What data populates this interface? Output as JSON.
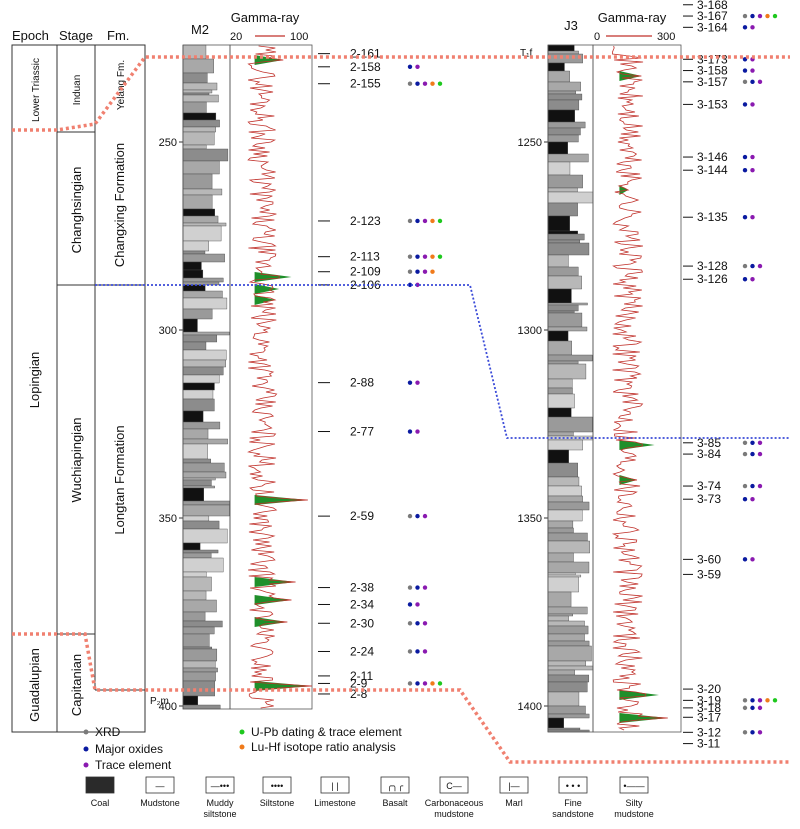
{
  "headers": {
    "epoch": "Epoch",
    "stage": "Stage",
    "formation": "Fm.",
    "well_a": "M2",
    "well_b": "J3",
    "gamma_a": "Gamma-ray",
    "gamma_b": "Gamma-ray",
    "gamma_a_min": "20",
    "gamma_a_max": "100",
    "gamma_b_min": "0",
    "gamma_b_max": "300"
  },
  "epochs": [
    {
      "label": "Lower Triassic"
    },
    {
      "label": "Lopingian"
    },
    {
      "label": "Guadalupian"
    }
  ],
  "stages": [
    {
      "label": "Induan"
    },
    {
      "label": "Changhsingian"
    },
    {
      "label": "Wuchiapingian"
    },
    {
      "label": "Capitanian"
    }
  ],
  "formations": [
    {
      "label": "Yelang Fm."
    },
    {
      "label": "Changxing Formation"
    },
    {
      "label": "Longtan Formation"
    }
  ],
  "depth_ticks_a": [
    "250",
    "300",
    "350",
    "400"
  ],
  "depth_ticks_b": [
    "1250",
    "1300",
    "1350",
    "1400"
  ],
  "bottom_label_a": "P₂m",
  "top_label_b": "T₁f",
  "samples_a": [
    {
      "label": "2-161",
      "depth": 226.5,
      "dots": []
    },
    {
      "label": "2-158",
      "depth": 230,
      "dots": [
        "major",
        "trace"
      ]
    },
    {
      "label": "2-155",
      "depth": 234.5,
      "dots": [
        "xrd",
        "major",
        "trace",
        "lu",
        "upb"
      ]
    },
    {
      "label": "2-123",
      "depth": 271,
      "dots": [
        "xrd",
        "major",
        "trace",
        "lu",
        "upb"
      ]
    },
    {
      "label": "2-113",
      "depth": 280.5,
      "dots": [
        "xrd",
        "major",
        "trace",
        "lu",
        "upb"
      ]
    },
    {
      "label": "2-109",
      "depth": 284.5,
      "dots": [
        "xrd",
        "major",
        "trace",
        "lu"
      ]
    },
    {
      "label": "2-106",
      "depth": 288,
      "dots": [
        "major",
        "trace"
      ]
    },
    {
      "label": "2-88",
      "depth": 314,
      "dots": [
        "major",
        "trace"
      ]
    },
    {
      "label": "2-77",
      "depth": 327,
      "dots": [
        "major",
        "trace"
      ]
    },
    {
      "label": "2-59",
      "depth": 349.5,
      "dots": [
        "xrd",
        "major",
        "trace"
      ]
    },
    {
      "label": "2-38",
      "depth": 368.5,
      "dots": [
        "xrd",
        "major",
        "trace"
      ]
    },
    {
      "label": "2-34",
      "depth": 373,
      "dots": [
        "major",
        "trace"
      ]
    },
    {
      "label": "2-30",
      "depth": 378,
      "dots": [
        "xrd",
        "major",
        "trace"
      ]
    },
    {
      "label": "2-24",
      "depth": 385.5,
      "dots": [
        "xrd",
        "major",
        "trace"
      ]
    },
    {
      "label": "2-11",
      "depth": 392,
      "dots": []
    },
    {
      "label": "2-9",
      "depth": 394,
      "dots": [
        "xrd",
        "major",
        "trace",
        "lu",
        "upb"
      ]
    },
    {
      "label": "2-8",
      "depth": 396.8,
      "dots": []
    }
  ],
  "samples_b": [
    {
      "label": "3-168",
      "depth": 1213.5,
      "dots": []
    },
    {
      "label": "3-167",
      "depth": 1216.5,
      "dots": [
        "xrd",
        "major",
        "trace",
        "lu",
        "upb"
      ]
    },
    {
      "label": "3-164",
      "depth": 1219.5,
      "dots": [
        "major",
        "trace"
      ]
    },
    {
      "label": "3-173",
      "depth": 1228,
      "dots": [
        "major",
        "trace"
      ]
    },
    {
      "label": "3-158",
      "depth": 1231,
      "dots": [
        "major",
        "trace"
      ]
    },
    {
      "label": "3-157",
      "depth": 1234,
      "dots": [
        "xrd",
        "major",
        "trace"
      ]
    },
    {
      "label": "3-153",
      "depth": 1240,
      "dots": [
        "major",
        "trace"
      ]
    },
    {
      "label": "3-146",
      "depth": 1254,
      "dots": [
        "major",
        "trace"
      ]
    },
    {
      "label": "3-144",
      "depth": 1257.5,
      "dots": [
        "major",
        "trace"
      ]
    },
    {
      "label": "3-135",
      "depth": 1270,
      "dots": [
        "major",
        "trace"
      ]
    },
    {
      "label": "3-128",
      "depth": 1283,
      "dots": [
        "xrd",
        "major",
        "trace"
      ]
    },
    {
      "label": "3-126",
      "depth": 1286.5,
      "dots": [
        "major",
        "trace"
      ]
    },
    {
      "label": "3-85",
      "depth": 1330,
      "dots": [
        "xrd",
        "major",
        "trace"
      ]
    },
    {
      "label": "3-84",
      "depth": 1333,
      "dots": [
        "xrd",
        "major",
        "trace"
      ]
    },
    {
      "label": "3-74",
      "depth": 1341.5,
      "dots": [
        "xrd",
        "major",
        "trace"
      ]
    },
    {
      "label": "3-73",
      "depth": 1345,
      "dots": [
        "major",
        "trace"
      ]
    },
    {
      "label": "3-60",
      "depth": 1361,
      "dots": [
        "major",
        "trace"
      ]
    },
    {
      "label": "3-59",
      "depth": 1365,
      "dots": []
    },
    {
      "label": "3-20",
      "depth": 1395.5,
      "dots": []
    },
    {
      "label": "3-19",
      "depth": 1398.5,
      "dots": [
        "xrd",
        "major",
        "trace",
        "lu",
        "upb"
      ]
    },
    {
      "label": "3-18",
      "depth": 1400.5,
      "dots": [
        "xrd",
        "major",
        "trace"
      ]
    },
    {
      "label": "3-17",
      "depth": 1403,
      "dots": []
    },
    {
      "label": "3-12",
      "depth": 1407,
      "dots": [
        "xrd",
        "major",
        "trace"
      ]
    },
    {
      "label": "3-11",
      "depth": 1410,
      "dots": []
    }
  ],
  "legend": {
    "xrd": "XRD",
    "major": "Major oxides",
    "trace": "Trace element",
    "upb": "U-Pb dating & trace element",
    "lu": "Lu-Hf isotope ratio analysis"
  },
  "dot_colors": {
    "xrd": "#7a7a7a",
    "major": "#0a1aa0",
    "trace": "#8a1ab0",
    "lu": "#f07a1a",
    "upb": "#1ec81e"
  },
  "lithology": [
    {
      "label": "Coal"
    },
    {
      "label": "Mudstone"
    },
    {
      "label": "Muddy siltstone"
    },
    {
      "label": "Siltstone"
    },
    {
      "label": "Limestone"
    },
    {
      "label": "Basalt"
    },
    {
      "label": "Carbonaceous mudstone"
    },
    {
      "label": "Marl"
    },
    {
      "label": "Fine sandstone"
    },
    {
      "label": "Silty mudstone"
    }
  ],
  "colors": {
    "boundary_red": "#f08070",
    "boundary_blue": "#3a4ad8",
    "gamma_line": "#c0302a",
    "gamma_fill": "#1f8f2a"
  }
}
